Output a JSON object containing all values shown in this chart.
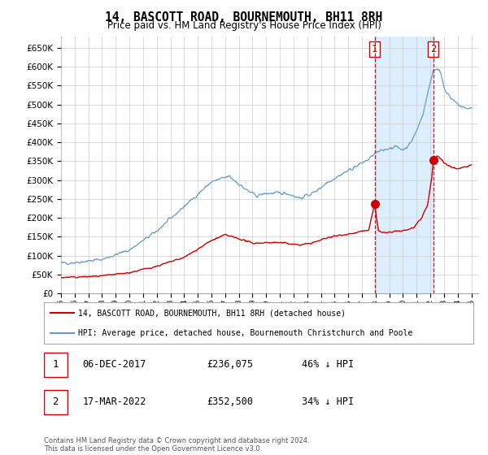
{
  "title": "14, BASCOTT ROAD, BOURNEMOUTH, BH11 8RH",
  "subtitle": "Price paid vs. HM Land Registry's House Price Index (HPI)",
  "ytick_values": [
    0,
    50000,
    100000,
    150000,
    200000,
    250000,
    300000,
    350000,
    400000,
    450000,
    500000,
    550000,
    600000,
    650000
  ],
  "ylim": [
    0,
    680000
  ],
  "xlim_start": 1995.0,
  "xlim_end": 2025.5,
  "transaction1": {
    "date_num": 2017.92,
    "price": 236075,
    "label": "1"
  },
  "transaction2": {
    "date_num": 2022.21,
    "price": 352500,
    "label": "2"
  },
  "legend_red": "14, BASCOTT ROAD, BOURNEMOUTH, BH11 8RH (detached house)",
  "legend_blue": "HPI: Average price, detached house, Bournemouth Christchurch and Poole",
  "table_rows": [
    {
      "num": "1",
      "date": "06-DEC-2017",
      "price": "£236,075",
      "pct": "46% ↓ HPI"
    },
    {
      "num": "2",
      "date": "17-MAR-2022",
      "price": "£352,500",
      "pct": "34% ↓ HPI"
    }
  ],
  "footnote": "Contains HM Land Registry data © Crown copyright and database right 2024.\nThis data is licensed under the Open Government Licence v3.0.",
  "grid_color": "#cccccc",
  "red_line_color": "#cc0000",
  "blue_line_color": "#6699cc",
  "shade_color": "#ddeeff",
  "vline_color": "#cc0000"
}
